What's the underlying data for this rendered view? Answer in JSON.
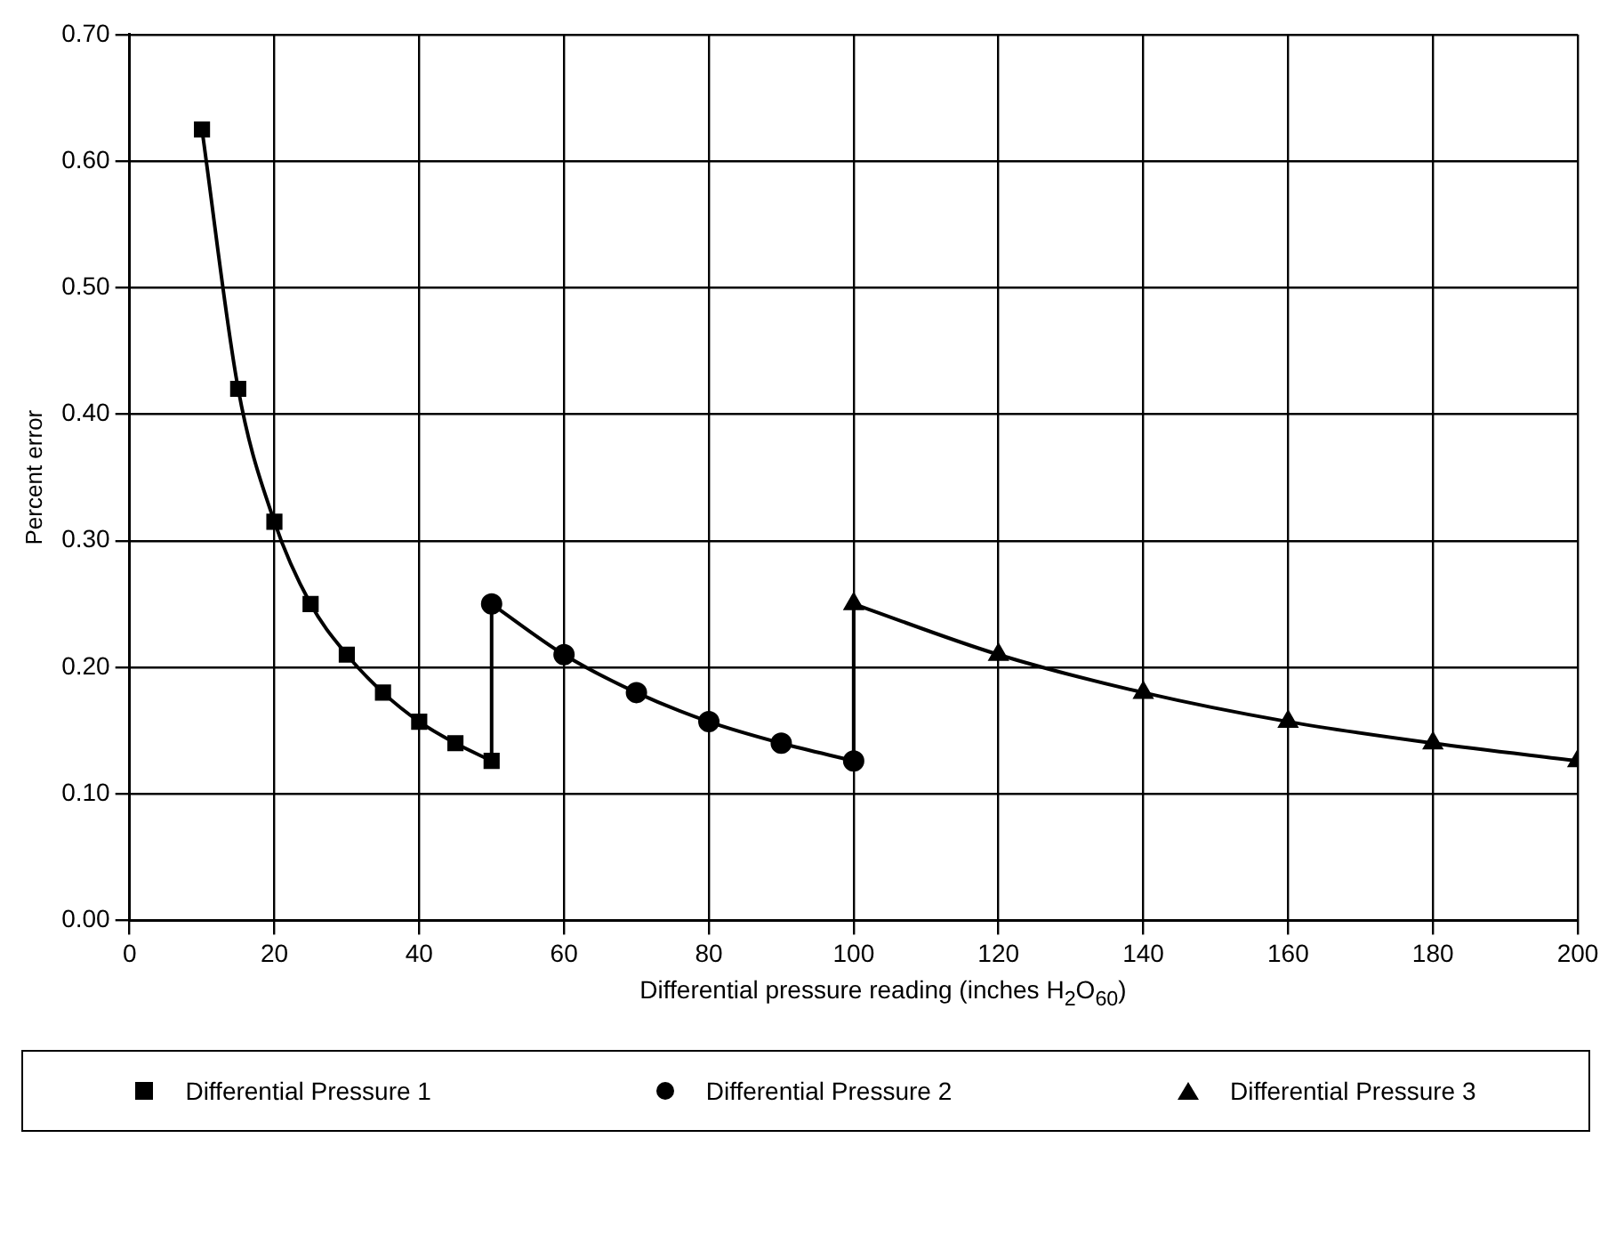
{
  "chart_data": {
    "type": "line",
    "xlabel": "Differential pressure reading (inches H$_{2}$O$_{60}$)",
    "ylabel": "Percent error",
    "xlim": [
      0,
      200
    ],
    "xticks": [
      0,
      20,
      40,
      60,
      80,
      100,
      120,
      140,
      160,
      180,
      200
    ],
    "ylim": [
      0,
      0.7
    ],
    "yticks": [
      {
        "value": 0,
        "label": "0.00"
      },
      {
        "value": 0.1,
        "label": "0.10"
      },
      {
        "value": 0.2,
        "label": "0.20"
      },
      {
        "value": 0.3,
        "label": "0.30"
      },
      {
        "value": 0.4,
        "label": "0.40"
      },
      {
        "value": 0.5,
        "label": "0.50"
      },
      {
        "value": 0.6,
        "label": "0.60"
      },
      {
        "value": 0.7,
        "label": "0.70"
      }
    ],
    "grid": true,
    "legend": "bottom",
    "series": [
      {
        "name": "Differential Pressure 1",
        "color": "#000000",
        "marker": "square",
        "x": [
          10,
          15,
          20,
          25,
          30,
          35,
          40,
          45,
          50
        ],
        "values": [
          0.625,
          0.42,
          0.315,
          0.25,
          0.21,
          0.18,
          0.157,
          0.14,
          0.126
        ]
      },
      {
        "name": "Differential Pressure 2",
        "color": "#000000",
        "marker": "circle",
        "x": [
          50,
          60,
          70,
          80,
          90,
          100
        ],
        "values": [
          0.25,
          0.21,
          0.18,
          0.157,
          0.14,
          0.126
        ]
      },
      {
        "name": "Differential Pressure 3",
        "color": "#000000",
        "marker": "triangle",
        "x": [
          100,
          120,
          140,
          160,
          180,
          200
        ],
        "values": [
          0.25,
          0.21,
          0.18,
          0.157,
          0.14,
          0.126
        ]
      },
      {
        "color": "#000000",
        "marker": "none",
        "x": [
          50,
          50
        ],
        "values": [
          0.126,
          0.25
        ]
      },
      {
        "color": "#000000",
        "marker": "none",
        "x": [
          100,
          100
        ],
        "values": [
          0.126,
          0.25
        ]
      }
    ]
  }
}
